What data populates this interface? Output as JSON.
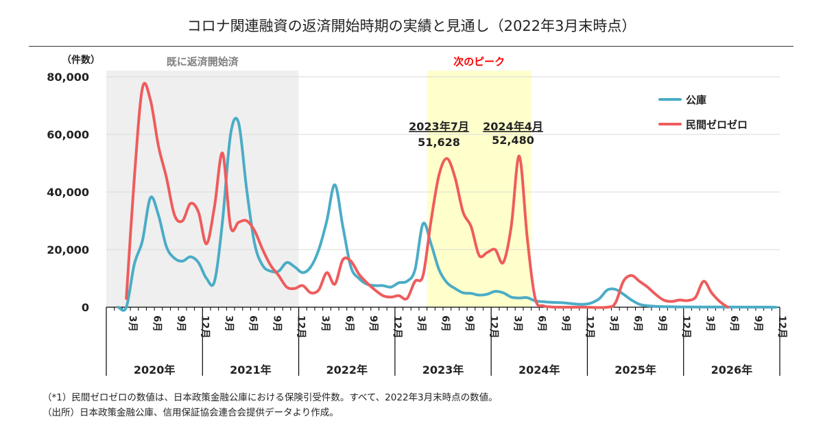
{
  "header": {
    "title": "コロナ関連融資の返済開始時期の実績と見通し（2022年3月末時点）"
  },
  "chart_data": {
    "type": "line",
    "ylabel": "（件数）",
    "ylim": [
      0,
      80000
    ],
    "yticks": [
      0,
      20000,
      40000,
      60000,
      80000
    ],
    "ytick_labels": [
      "0",
      "20,000",
      "40,000",
      "60,000",
      "80,000"
    ],
    "grid": true,
    "x_range": [
      "2020-01",
      "2026-12"
    ],
    "month_tick_labels": [
      "3月",
      "6月",
      "9月",
      "12月"
    ],
    "years": [
      "2020年",
      "2021年",
      "2022年",
      "2023年",
      "2024年",
      "2025年",
      "2026年"
    ],
    "legend_position": "top-right",
    "series": [
      {
        "name": "公庫",
        "color": "#4BACC6",
        "points": [
          [
            "2020-02",
            0
          ],
          [
            "2020-03",
            0
          ],
          [
            "2020-04",
            15000
          ],
          [
            "2020-05",
            23000
          ],
          [
            "2020-06",
            38000
          ],
          [
            "2020-07",
            32000
          ],
          [
            "2020-08",
            21000
          ],
          [
            "2020-09",
            17000
          ],
          [
            "2020-10",
            16000
          ],
          [
            "2020-11",
            17500
          ],
          [
            "2020-12",
            15500
          ],
          [
            "2021-01",
            10000
          ],
          [
            "2021-02",
            9000
          ],
          [
            "2021-03",
            30000
          ],
          [
            "2021-04",
            60000
          ],
          [
            "2021-05",
            64000
          ],
          [
            "2021-06",
            41000
          ],
          [
            "2021-07",
            22000
          ],
          [
            "2021-08",
            14500
          ],
          [
            "2021-09",
            12500
          ],
          [
            "2021-10",
            12500
          ],
          [
            "2021-11",
            15500
          ],
          [
            "2021-12",
            14000
          ],
          [
            "2022-01",
            12000
          ],
          [
            "2022-02",
            14000
          ],
          [
            "2022-03",
            20000
          ],
          [
            "2022-04",
            30000
          ],
          [
            "2022-05",
            42500
          ],
          [
            "2022-06",
            28000
          ],
          [
            "2022-07",
            14000
          ],
          [
            "2022-08",
            10000
          ],
          [
            "2022-09",
            8000
          ],
          [
            "2022-10",
            7500
          ],
          [
            "2022-11",
            7500
          ],
          [
            "2022-12",
            7000
          ],
          [
            "2023-01",
            8500
          ],
          [
            "2023-02",
            9000
          ],
          [
            "2023-03",
            13000
          ],
          [
            "2023-04",
            29000
          ],
          [
            "2023-05",
            22000
          ],
          [
            "2023-06",
            13000
          ],
          [
            "2023-07",
            8500
          ],
          [
            "2023-08",
            6500
          ],
          [
            "2023-09",
            5000
          ],
          [
            "2023-10",
            4800
          ],
          [
            "2023-11",
            4200
          ],
          [
            "2023-12",
            4500
          ],
          [
            "2024-01",
            5500
          ],
          [
            "2024-02",
            5000
          ],
          [
            "2024-03",
            3500
          ],
          [
            "2024-04",
            3200
          ],
          [
            "2024-05",
            3300
          ],
          [
            "2024-06",
            2200
          ],
          [
            "2024-07",
            1900
          ],
          [
            "2024-08",
            1700
          ],
          [
            "2024-09",
            1600
          ],
          [
            "2024-10",
            1400
          ],
          [
            "2024-11",
            1100
          ],
          [
            "2024-12",
            1000
          ],
          [
            "2025-01",
            1500
          ],
          [
            "2025-02",
            3000
          ],
          [
            "2025-03",
            6000
          ],
          [
            "2025-04",
            6200
          ],
          [
            "2025-05",
            4500
          ],
          [
            "2025-06",
            2500
          ],
          [
            "2025-07",
            1000
          ],
          [
            "2025-08",
            500
          ],
          [
            "2025-09",
            300
          ],
          [
            "2025-10",
            200
          ],
          [
            "2025-11",
            150
          ],
          [
            "2025-12",
            100
          ],
          [
            "2026-02",
            80
          ],
          [
            "2026-04",
            60
          ],
          [
            "2026-06",
            50
          ],
          [
            "2026-09",
            30
          ],
          [
            "2026-12",
            0
          ]
        ]
      },
      {
        "name": "民間ゼロゼロ",
        "color": "#EE5C5C",
        "points": [
          [
            "2020-03",
            3000
          ],
          [
            "2020-04",
            45000
          ],
          [
            "2020-05",
            76000
          ],
          [
            "2020-06",
            72000
          ],
          [
            "2020-07",
            56000
          ],
          [
            "2020-08",
            45000
          ],
          [
            "2020-09",
            32000
          ],
          [
            "2020-10",
            30000
          ],
          [
            "2020-11",
            36000
          ],
          [
            "2020-12",
            33000
          ],
          [
            "2021-01",
            22000
          ],
          [
            "2021-02",
            35000
          ],
          [
            "2021-03",
            53500
          ],
          [
            "2021-04",
            28000
          ],
          [
            "2021-05",
            29500
          ],
          [
            "2021-06",
            30000
          ],
          [
            "2021-07",
            26500
          ],
          [
            "2021-08",
            20000
          ],
          [
            "2021-09",
            14500
          ],
          [
            "2021-10",
            11000
          ],
          [
            "2021-11",
            7000
          ],
          [
            "2021-12",
            6500
          ],
          [
            "2022-01",
            7500
          ],
          [
            "2022-02",
            5000
          ],
          [
            "2022-03",
            6000
          ],
          [
            "2022-04",
            12000
          ],
          [
            "2022-05",
            8000
          ],
          [
            "2022-06",
            16500
          ],
          [
            "2022-07",
            16000
          ],
          [
            "2022-08",
            11500
          ],
          [
            "2022-09",
            8500
          ],
          [
            "2022-10",
            6000
          ],
          [
            "2022-11",
            4000
          ],
          [
            "2022-12",
            3500
          ],
          [
            "2023-01",
            4000
          ],
          [
            "2023-02",
            3000
          ],
          [
            "2023-03",
            9000
          ],
          [
            "2023-04",
            11000
          ],
          [
            "2023-05",
            30000
          ],
          [
            "2023-06",
            46000
          ],
          [
            "2023-07",
            51628
          ],
          [
            "2023-08",
            45000
          ],
          [
            "2023-09",
            33000
          ],
          [
            "2023-10",
            28000
          ],
          [
            "2023-11",
            18000
          ],
          [
            "2023-12",
            19000
          ],
          [
            "2024-01",
            20000
          ],
          [
            "2024-02",
            15500
          ],
          [
            "2024-03",
            28000
          ],
          [
            "2024-04",
            52480
          ],
          [
            "2024-05",
            24000
          ],
          [
            "2024-06",
            3000
          ],
          [
            "2024-07",
            500
          ],
          [
            "2024-08",
            100
          ],
          [
            "2024-09",
            0
          ],
          [
            "2024-10",
            0
          ],
          [
            "2024-12",
            0
          ],
          [
            "2025-03",
            0
          ],
          [
            "2025-04",
            1500
          ],
          [
            "2025-05",
            9000
          ],
          [
            "2025-06",
            11000
          ],
          [
            "2025-07",
            9000
          ],
          [
            "2025-08",
            7000
          ],
          [
            "2025-09",
            4500
          ],
          [
            "2025-10",
            2500
          ],
          [
            "2025-11",
            2000
          ],
          [
            "2025-12",
            2500
          ],
          [
            "2026-01",
            2300
          ],
          [
            "2026-02",
            3500
          ],
          [
            "2026-03",
            9000
          ],
          [
            "2026-04",
            5000
          ],
          [
            "2026-05",
            2000
          ],
          [
            "2026-06",
            0
          ]
        ]
      }
    ],
    "shaded_regions": [
      {
        "label": "既に返済開始済",
        "start": "2020-01",
        "end": "2021-12",
        "color": "#EFEFEF",
        "label_color": "#7F7F7F"
      },
      {
        "label": "次のピーク",
        "start": "2023-05",
        "end": "2024-05",
        "color": "#FFFFCC",
        "label_color": "#FF0000"
      }
    ],
    "annotations": [
      {
        "label": "2023年7月",
        "value": "51,628"
      },
      {
        "label": "2024年4月",
        "value": "52,480"
      }
    ]
  },
  "notes": [
    "（*1）民間ゼロゼロの数値は、日本政策金融公庫における保険引受件数。すべて、2022年3月末時点の数値。",
    "（出所）日本政策金融公庫、信用保証協会連合会提供データより作成。"
  ]
}
